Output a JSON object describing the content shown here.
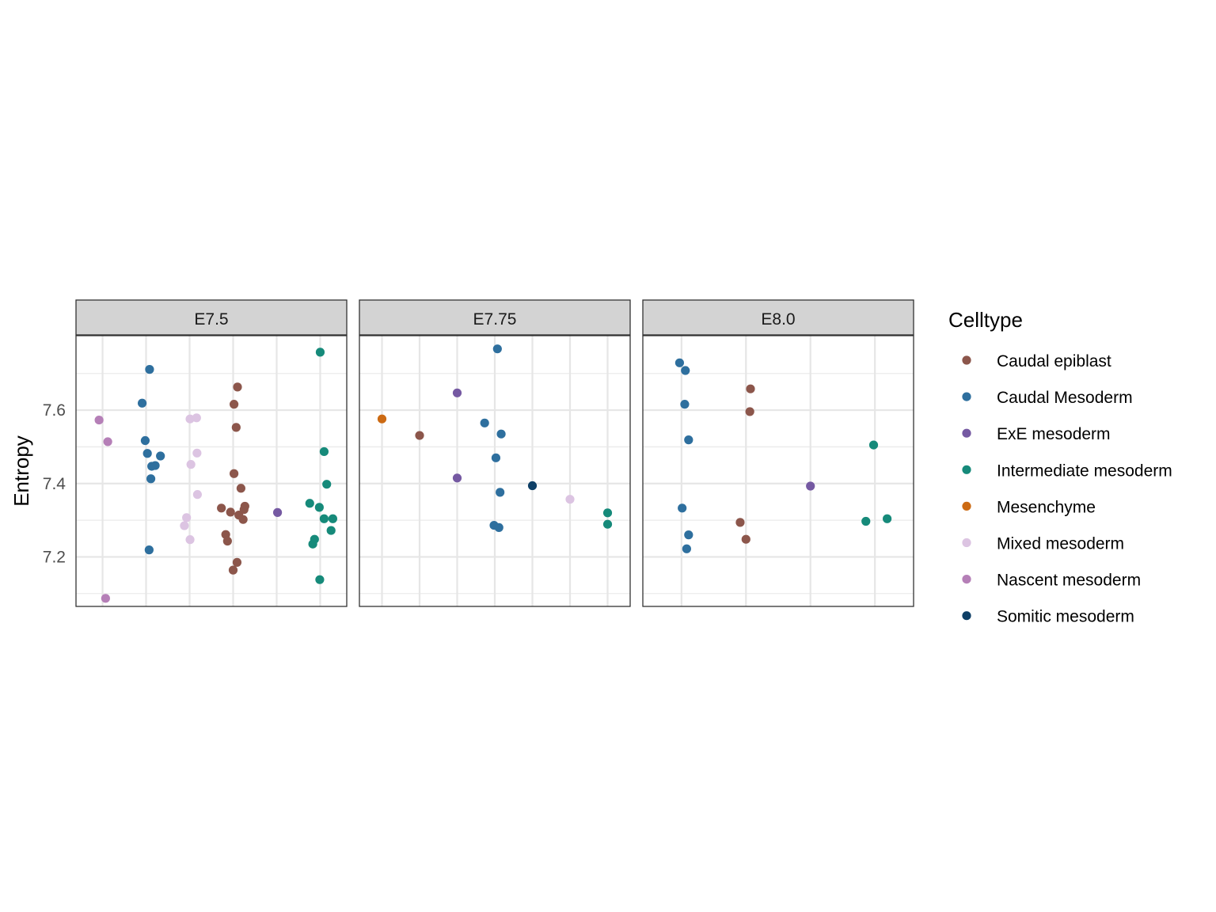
{
  "chart_data": {
    "type": "scatter",
    "ylabel": "Entropy",
    "xlabel": "",
    "ylim": [
      7.065,
      7.803
    ],
    "yticks": [
      7.2,
      7.4,
      7.6
    ],
    "grid": true,
    "legend_position": "right",
    "legend": {
      "title": "Celltype",
      "entries": [
        {
          "name": "Caudal epiblast",
          "color": "#8c564b"
        },
        {
          "name": "Caudal Mesoderm",
          "color": "#2e6f9e"
        },
        {
          "name": "ExE mesoderm",
          "color": "#7559a2"
        },
        {
          "name": "Intermediate mesoderm",
          "color": "#168a7a"
        },
        {
          "name": "Mesenchyme",
          "color": "#cc6a13"
        },
        {
          "name": "Mixed mesoderm",
          "color": "#dcc4e2"
        },
        {
          "name": "Nascent mesoderm",
          "color": "#b57fb7"
        },
        {
          "name": "Somitic mesoderm",
          "color": "#0e3f66"
        }
      ]
    },
    "panels": [
      {
        "title": "E7.5",
        "xlim": [
          0.39,
          6.61
        ],
        "xgrid": [
          1,
          2,
          3,
          4,
          5,
          6
        ],
        "points": [
          {
            "x": 0.92,
            "y": 7.573,
            "type": "Nascent mesoderm"
          },
          {
            "x": 1.12,
            "y": 7.514,
            "type": "Nascent mesoderm"
          },
          {
            "x": 1.07,
            "y": 7.087,
            "type": "Nascent mesoderm"
          },
          {
            "x": 2.08,
            "y": 7.711,
            "type": "Caudal Mesoderm"
          },
          {
            "x": 1.91,
            "y": 7.619,
            "type": "Caudal Mesoderm"
          },
          {
            "x": 1.98,
            "y": 7.517,
            "type": "Caudal Mesoderm"
          },
          {
            "x": 2.03,
            "y": 7.482,
            "type": "Caudal Mesoderm"
          },
          {
            "x": 2.33,
            "y": 7.475,
            "type": "Caudal Mesoderm"
          },
          {
            "x": 2.13,
            "y": 7.447,
            "type": "Caudal Mesoderm"
          },
          {
            "x": 2.21,
            "y": 7.449,
            "type": "Caudal Mesoderm"
          },
          {
            "x": 2.11,
            "y": 7.413,
            "type": "Caudal Mesoderm"
          },
          {
            "x": 2.07,
            "y": 7.219,
            "type": "Caudal Mesoderm"
          },
          {
            "x": 3.01,
            "y": 7.576,
            "type": "Mixed mesoderm"
          },
          {
            "x": 3.16,
            "y": 7.579,
            "type": "Mixed mesoderm"
          },
          {
            "x": 3.17,
            "y": 7.483,
            "type": "Mixed mesoderm"
          },
          {
            "x": 3.03,
            "y": 7.452,
            "type": "Mixed mesoderm"
          },
          {
            "x": 3.18,
            "y": 7.37,
            "type": "Mixed mesoderm"
          },
          {
            "x": 2.93,
            "y": 7.307,
            "type": "Mixed mesoderm"
          },
          {
            "x": 2.88,
            "y": 7.285,
            "type": "Mixed mesoderm"
          },
          {
            "x": 3.01,
            "y": 7.247,
            "type": "Mixed mesoderm"
          },
          {
            "x": 4.1,
            "y": 7.663,
            "type": "Caudal epiblast"
          },
          {
            "x": 4.02,
            "y": 7.616,
            "type": "Caudal epiblast"
          },
          {
            "x": 4.07,
            "y": 7.553,
            "type": "Caudal epiblast"
          },
          {
            "x": 4.02,
            "y": 7.427,
            "type": "Caudal epiblast"
          },
          {
            "x": 4.18,
            "y": 7.387,
            "type": "Caudal epiblast"
          },
          {
            "x": 3.73,
            "y": 7.333,
            "type": "Caudal epiblast"
          },
          {
            "x": 3.94,
            "y": 7.322,
            "type": "Caudal epiblast"
          },
          {
            "x": 4.13,
            "y": 7.314,
            "type": "Caudal epiblast"
          },
          {
            "x": 4.27,
            "y": 7.338,
            "type": "Caudal epiblast"
          },
          {
            "x": 4.25,
            "y": 7.329,
            "type": "Caudal epiblast"
          },
          {
            "x": 4.23,
            "y": 7.302,
            "type": "Caudal epiblast"
          },
          {
            "x": 3.83,
            "y": 7.261,
            "type": "Caudal epiblast"
          },
          {
            "x": 3.87,
            "y": 7.243,
            "type": "Caudal epiblast"
          },
          {
            "x": 4.09,
            "y": 7.185,
            "type": "Caudal epiblast"
          },
          {
            "x": 4.0,
            "y": 7.164,
            "type": "Caudal epiblast"
          },
          {
            "x": 5.02,
            "y": 7.321,
            "type": "ExE mesoderm"
          },
          {
            "x": 6.0,
            "y": 7.758,
            "type": "Intermediate mesoderm"
          },
          {
            "x": 6.09,
            "y": 7.487,
            "type": "Intermediate mesoderm"
          },
          {
            "x": 6.15,
            "y": 7.398,
            "type": "Intermediate mesoderm"
          },
          {
            "x": 5.76,
            "y": 7.346,
            "type": "Intermediate mesoderm"
          },
          {
            "x": 5.98,
            "y": 7.335,
            "type": "Intermediate mesoderm"
          },
          {
            "x": 6.09,
            "y": 7.304,
            "type": "Intermediate mesoderm"
          },
          {
            "x": 6.29,
            "y": 7.304,
            "type": "Intermediate mesoderm"
          },
          {
            "x": 6.25,
            "y": 7.272,
            "type": "Intermediate mesoderm"
          },
          {
            "x": 5.87,
            "y": 7.248,
            "type": "Intermediate mesoderm"
          },
          {
            "x": 5.83,
            "y": 7.235,
            "type": "Intermediate mesoderm"
          },
          {
            "x": 5.99,
            "y": 7.138,
            "type": "Intermediate mesoderm"
          }
        ]
      },
      {
        "title": "E7.75",
        "xlim": [
          0.4,
          7.6
        ],
        "xgrid": [
          1,
          2,
          3,
          4,
          5,
          6,
          7
        ],
        "points": [
          {
            "x": 1.0,
            "y": 7.576,
            "type": "Mesenchyme"
          },
          {
            "x": 2.0,
            "y": 7.531,
            "type": "Caudal epiblast"
          },
          {
            "x": 3.0,
            "y": 7.647,
            "type": "ExE mesoderm"
          },
          {
            "x": 3.0,
            "y": 7.415,
            "type": "ExE mesoderm"
          },
          {
            "x": 4.07,
            "y": 7.767,
            "type": "Caudal Mesoderm"
          },
          {
            "x": 3.73,
            "y": 7.565,
            "type": "Caudal Mesoderm"
          },
          {
            "x": 4.17,
            "y": 7.535,
            "type": "Caudal Mesoderm"
          },
          {
            "x": 4.03,
            "y": 7.47,
            "type": "Caudal Mesoderm"
          },
          {
            "x": 4.14,
            "y": 7.376,
            "type": "Caudal Mesoderm"
          },
          {
            "x": 3.98,
            "y": 7.286,
            "type": "Caudal Mesoderm"
          },
          {
            "x": 4.11,
            "y": 7.28,
            "type": "Caudal Mesoderm"
          },
          {
            "x": 5.0,
            "y": 7.394,
            "type": "Somitic mesoderm"
          },
          {
            "x": 6.0,
            "y": 7.357,
            "type": "Mixed mesoderm"
          },
          {
            "x": 7.0,
            "y": 7.32,
            "type": "Intermediate mesoderm"
          },
          {
            "x": 7.0,
            "y": 7.289,
            "type": "Intermediate mesoderm"
          }
        ]
      },
      {
        "title": "E8.0",
        "xlim": [
          0.4,
          4.6
        ],
        "xgrid": [
          1,
          2,
          3,
          4
        ],
        "points": [
          {
            "x": 0.97,
            "y": 7.729,
            "type": "Caudal Mesoderm"
          },
          {
            "x": 1.06,
            "y": 7.708,
            "type": "Caudal Mesoderm"
          },
          {
            "x": 1.05,
            "y": 7.616,
            "type": "Caudal Mesoderm"
          },
          {
            "x": 1.11,
            "y": 7.519,
            "type": "Caudal Mesoderm"
          },
          {
            "x": 1.01,
            "y": 7.333,
            "type": "Caudal Mesoderm"
          },
          {
            "x": 1.11,
            "y": 7.26,
            "type": "Caudal Mesoderm"
          },
          {
            "x": 1.08,
            "y": 7.222,
            "type": "Caudal Mesoderm"
          },
          {
            "x": 2.07,
            "y": 7.658,
            "type": "Caudal epiblast"
          },
          {
            "x": 2.06,
            "y": 7.596,
            "type": "Caudal epiblast"
          },
          {
            "x": 1.91,
            "y": 7.294,
            "type": "Caudal epiblast"
          },
          {
            "x": 2.0,
            "y": 7.248,
            "type": "Caudal epiblast"
          },
          {
            "x": 3.0,
            "y": 7.393,
            "type": "ExE mesoderm"
          },
          {
            "x": 3.98,
            "y": 7.505,
            "type": "Intermediate mesoderm"
          },
          {
            "x": 3.86,
            "y": 7.297,
            "type": "Intermediate mesoderm"
          },
          {
            "x": 4.19,
            "y": 7.304,
            "type": "Intermediate mesoderm"
          }
        ]
      }
    ]
  }
}
